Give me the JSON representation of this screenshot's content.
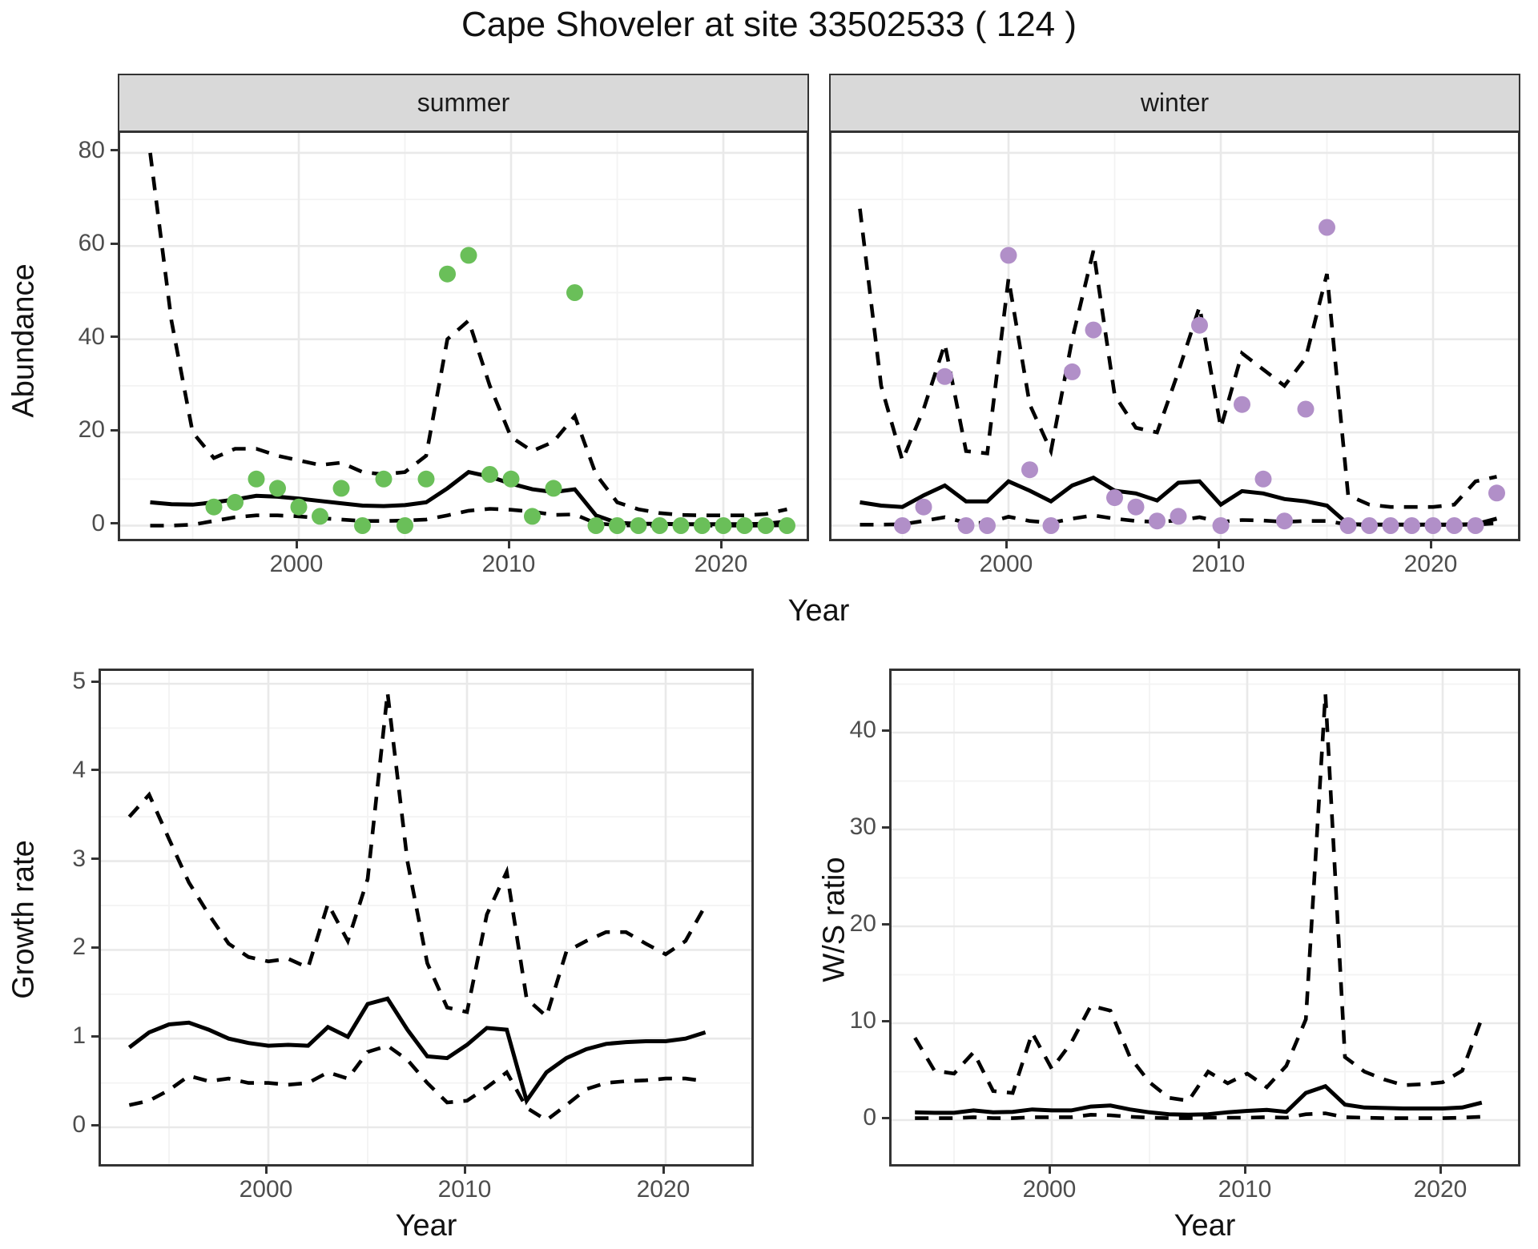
{
  "title": "Cape Shoveler at site 33502533 ( 124 )",
  "colors": {
    "summer_points": "#6abf59",
    "winter_points": "#b18fc8",
    "line": "#000000",
    "strip_bg": "#d9d9d9",
    "panel_border": "#333333",
    "grid_major": "#e9e9e9",
    "grid_minor": "#f3f3f3",
    "tick_text": "#4d4d4d"
  },
  "axis_titles": {
    "abundance": "Abundance",
    "year_top": "Year",
    "growth_rate": "Growth rate",
    "ws_ratio": "W/S ratio",
    "year_growth": "Year",
    "year_ws": "Year"
  },
  "chart_data": [
    {
      "type": "line",
      "facet_label": "summer",
      "ylabel": "Abundance",
      "xlabel": "Year",
      "ylim": [
        0,
        84
      ],
      "yticks": [
        0,
        20,
        40,
        60,
        80
      ],
      "yminor": [
        10,
        30,
        50,
        70
      ],
      "xticks": [
        2000,
        2010,
        2020
      ],
      "xminor": [
        1995,
        2005,
        2015
      ],
      "grid": true,
      "legend": "none",
      "x": [
        1993,
        1994,
        1995,
        1996,
        1997,
        1998,
        1999,
        2000,
        2001,
        2002,
        2003,
        2004,
        2005,
        2006,
        2007,
        2008,
        2009,
        2010,
        2011,
        2012,
        2013,
        2014,
        2015,
        2016,
        2017,
        2018,
        2019,
        2020,
        2021,
        2022,
        2023
      ],
      "series": [
        {
          "name": "upper-95ci",
          "style": "dashed",
          "values": [
            80,
            44,
            20,
            14.5,
            16.5,
            16.5,
            15,
            14,
            13,
            13.5,
            11.5,
            11,
            11.5,
            15,
            40,
            44,
            30,
            19,
            16,
            18,
            23.5,
            11,
            5,
            3.5,
            2.7,
            2.3,
            2.2,
            2.2,
            2.2,
            2.5,
            3.5
          ]
        },
        {
          "name": "lower-95ci",
          "style": "dashed",
          "values": [
            0,
            0,
            0.2,
            1,
            1.8,
            2.2,
            2.2,
            2,
            1.6,
            1.3,
            1,
            1,
            1.1,
            1.3,
            2.2,
            3.2,
            3.6,
            3.4,
            3,
            2.3,
            2.4,
            0.5,
            0.1,
            0,
            0,
            0,
            0,
            0,
            0,
            0,
            0.1
          ]
        },
        {
          "name": "median",
          "style": "solid",
          "values": [
            5,
            4.6,
            4.5,
            5,
            5.6,
            6.4,
            6.2,
            5.8,
            5.3,
            4.8,
            4.3,
            4.2,
            4.4,
            5,
            8,
            11.5,
            10.5,
            9,
            7.8,
            7.2,
            7.8,
            2.2,
            0.6,
            0.4,
            0.4,
            0.3,
            0.3,
            0.3,
            0.3,
            0.4,
            0.9
          ]
        },
        {
          "name": "observed",
          "style": "points",
          "color": "#6abf59",
          "values": [
            null,
            null,
            null,
            4,
            5,
            10,
            8,
            4,
            2,
            8,
            0,
            10,
            0,
            10,
            54,
            58,
            11,
            10,
            2,
            8,
            50,
            0,
            0,
            0,
            0,
            0,
            0,
            0,
            0,
            0,
            0
          ]
        }
      ]
    },
    {
      "type": "line",
      "facet_label": "winter",
      "ylabel": "Abundance",
      "xlabel": "Year",
      "ylim": [
        0,
        84
      ],
      "yticks": [
        0,
        20,
        40,
        60,
        80
      ],
      "yminor": [
        10,
        30,
        50,
        70
      ],
      "xticks": [
        2000,
        2010,
        2020
      ],
      "xminor": [
        1995,
        2005,
        2015
      ],
      "grid": true,
      "legend": "none",
      "x": [
        1993,
        1994,
        1995,
        1996,
        1997,
        1998,
        1999,
        2000,
        2001,
        2002,
        2003,
        2004,
        2005,
        2006,
        2007,
        2008,
        2009,
        2010,
        2011,
        2012,
        2013,
        2014,
        2015,
        2016,
        2017,
        2018,
        2019,
        2020,
        2021,
        2022,
        2023
      ],
      "series": [
        {
          "name": "upper-95ci",
          "style": "dashed",
          "values": [
            68,
            30,
            14,
            25,
            39,
            16,
            15.5,
            53,
            26,
            16,
            40,
            59,
            28,
            21,
            20,
            33,
            47,
            21,
            37,
            33.5,
            30,
            36,
            54,
            6.5,
            4.5,
            4,
            4,
            4,
            4.5,
            9.5,
            10.5
          ]
        },
        {
          "name": "lower-95ci",
          "style": "dashed",
          "values": [
            0.2,
            0.2,
            0.3,
            1,
            1.8,
            0.6,
            0.6,
            1.9,
            1,
            0.6,
            1.5,
            2.2,
            1.5,
            1,
            0.8,
            1.1,
            1.8,
            0.8,
            1.2,
            1.1,
            0.8,
            1,
            1,
            0.2,
            0.15,
            0.15,
            0.15,
            0.15,
            0.15,
            0.2,
            0.5
          ]
        },
        {
          "name": "median",
          "style": "solid",
          "values": [
            5,
            4.3,
            4,
            6.5,
            8.6,
            5.2,
            5.2,
            9.5,
            7.5,
            5.2,
            8.6,
            10.3,
            7.5,
            6.9,
            5.4,
            9.2,
            9.5,
            4.5,
            7.4,
            6.9,
            5.7,
            5.2,
            4.3,
            0.3,
            0.2,
            0.2,
            0.2,
            0.2,
            0.2,
            0.3,
            1.5
          ]
        },
        {
          "name": "observed",
          "style": "points",
          "color": "#b18fc8",
          "values": [
            null,
            null,
            0,
            4,
            32,
            0,
            0,
            58,
            12,
            0,
            33,
            42,
            6,
            4,
            1,
            2,
            43,
            0,
            26,
            10,
            1,
            25,
            64,
            0,
            0,
            0,
            0,
            0,
            0,
            0,
            7
          ]
        }
      ]
    },
    {
      "type": "line",
      "facet_label": null,
      "ylabel": "Growth rate",
      "xlabel": "Year",
      "ylim": [
        0,
        5.1
      ],
      "yticks": [
        0,
        1,
        2,
        3,
        4,
        5
      ],
      "yminor": [
        0.5,
        1.5,
        2.5,
        3.5,
        4.5
      ],
      "xticks": [
        2000,
        2010,
        2020
      ],
      "xminor": [
        1995,
        2005,
        2015
      ],
      "grid": true,
      "legend": "none",
      "x": [
        1993,
        1994,
        1995,
        1996,
        1997,
        1998,
        1999,
        2000,
        2001,
        2002,
        2003,
        2004,
        2005,
        2006,
        2007,
        2008,
        2009,
        2010,
        2011,
        2012,
        2013,
        2014,
        2015,
        2016,
        2017,
        2018,
        2019,
        2020,
        2021,
        2022
      ],
      "series": [
        {
          "name": "upper-95ci",
          "style": "dashed",
          "values": [
            3.5,
            3.75,
            3.25,
            2.76,
            2.4,
            2.07,
            1.92,
            1.87,
            1.9,
            1.8,
            2.52,
            2.1,
            2.8,
            4.9,
            3.0,
            1.85,
            1.35,
            1.3,
            2.4,
            2.88,
            1.45,
            1.25,
            1.98,
            2.1,
            2.2,
            2.2,
            2.07,
            1.95,
            2.1,
            2.5
          ]
        },
        {
          "name": "lower-95ci",
          "style": "dashed",
          "values": [
            0.25,
            0.3,
            0.42,
            0.58,
            0.52,
            0.55,
            0.5,
            0.5,
            0.48,
            0.5,
            0.62,
            0.55,
            0.85,
            0.92,
            0.76,
            0.5,
            0.28,
            0.3,
            0.45,
            0.62,
            0.22,
            0.08,
            0.25,
            0.43,
            0.5,
            0.52,
            0.53,
            0.55,
            0.55,
            0.52
          ]
        },
        {
          "name": "median",
          "style": "solid",
          "values": [
            0.9,
            1.07,
            1.16,
            1.18,
            1.1,
            1.0,
            0.95,
            0.92,
            0.93,
            0.92,
            1.13,
            1.02,
            1.39,
            1.45,
            1.1,
            0.8,
            0.78,
            0.93,
            1.12,
            1.1,
            0.3,
            0.62,
            0.78,
            0.88,
            0.94,
            0.96,
            0.97,
            0.97,
            1.0,
            1.07
          ]
        }
      ]
    },
    {
      "type": "line",
      "facet_label": null,
      "ylabel": "W/S ratio",
      "xlabel": "Year",
      "ylim": [
        0,
        46
      ],
      "yticks": [
        0,
        10,
        20,
        30,
        40
      ],
      "yminor": [
        5,
        15,
        25,
        35,
        45
      ],
      "xticks": [
        2000,
        2010,
        2020
      ],
      "xminor": [
        1995,
        2005,
        2015
      ],
      "grid": true,
      "legend": "none",
      "x": [
        1993,
        1994,
        1995,
        1996,
        1997,
        1998,
        1999,
        2000,
        2001,
        2002,
        2003,
        2004,
        2005,
        2006,
        2007,
        2008,
        2009,
        2010,
        2011,
        2012,
        2013,
        2014,
        2015,
        2016,
        2017,
        2018,
        2019,
        2020,
        2021,
        2022
      ],
      "series": [
        {
          "name": "upper-95ci",
          "style": "dashed",
          "values": [
            8.5,
            5.1,
            4.8,
            7.0,
            3.0,
            2.8,
            9.0,
            5.3,
            8.0,
            11.8,
            11.3,
            6.5,
            3.9,
            2.3,
            2.0,
            5.0,
            3.8,
            4.8,
            3.4,
            5.6,
            10.4,
            44,
            6.5,
            5.0,
            4.2,
            3.6,
            3.7,
            3.9,
            5.1,
            10.5
          ]
        },
        {
          "name": "lower-95ci",
          "style": "dashed",
          "values": [
            0.2,
            0.2,
            0.2,
            0.3,
            0.2,
            0.2,
            0.3,
            0.3,
            0.3,
            0.55,
            0.5,
            0.35,
            0.25,
            0.2,
            0.2,
            0.25,
            0.25,
            0.25,
            0.3,
            0.25,
            0.6,
            0.7,
            0.3,
            0.25,
            0.2,
            0.2,
            0.2,
            0.2,
            0.25,
            0.35
          ]
        },
        {
          "name": "median",
          "style": "solid",
          "values": [
            0.8,
            0.75,
            0.75,
            1.0,
            0.8,
            0.85,
            1.1,
            1.0,
            1.0,
            1.4,
            1.5,
            1.1,
            0.8,
            0.6,
            0.55,
            0.6,
            0.8,
            0.95,
            1.05,
            0.85,
            2.8,
            3.5,
            1.6,
            1.3,
            1.25,
            1.2,
            1.2,
            1.2,
            1.3,
            1.8
          ]
        }
      ]
    }
  ]
}
